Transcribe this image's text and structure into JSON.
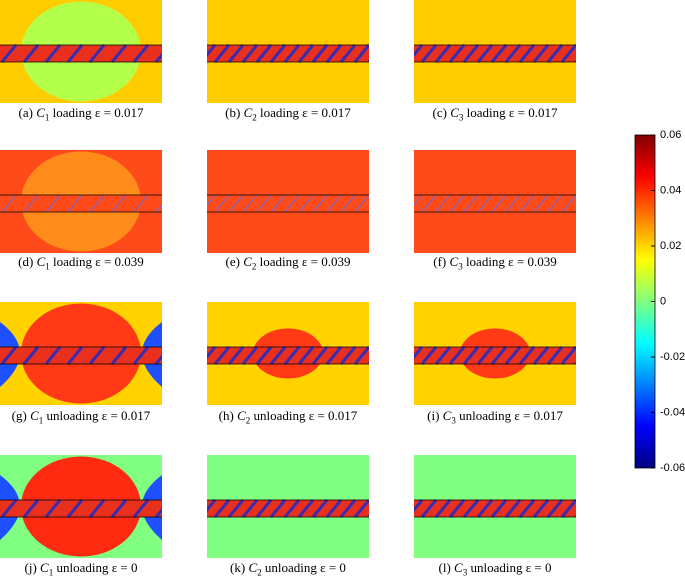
{
  "panels": [
    {
      "tag": "(a)",
      "sym": "C",
      "sub": "1",
      "rest": "loading ε = 0.017"
    },
    {
      "tag": "(b)",
      "sym": "C",
      "sub": "2",
      "rest": "loading ε = 0.017"
    },
    {
      "tag": "(c)",
      "sym": "C",
      "sub": "3",
      "rest": "loading ε = 0.017"
    },
    {
      "tag": "(d)",
      "sym": "C",
      "sub": "1",
      "rest": "loading ε = 0.039"
    },
    {
      "tag": "(e)",
      "sym": "C",
      "sub": "2",
      "rest": "loading ε = 0.039"
    },
    {
      "tag": "(f)",
      "sym": "C",
      "sub": "3",
      "rest": "loading ε = 0.039"
    },
    {
      "tag": "(g)",
      "sym": "C",
      "sub": "1",
      "rest": "unloading ε = 0.017"
    },
    {
      "tag": "(h)",
      "sym": "C",
      "sub": "2",
      "rest": "unloading ε = 0.017"
    },
    {
      "tag": "(i)",
      "sym": "C",
      "sub": "3",
      "rest": "unloading ε = 0.017"
    },
    {
      "tag": "(j)",
      "sym": "C",
      "sub": "1",
      "rest": "unloading ε = 0"
    },
    {
      "tag": "(k)",
      "sym": "C",
      "sub": "2",
      "rest": "unloading ε = 0"
    },
    {
      "tag": "(l)",
      "sym": "C",
      "sub": "3",
      "rest": "unloading ε = 0"
    }
  ],
  "colorbar": {
    "lim": [
      -0.06,
      0.06
    ],
    "ticks": [
      0.06,
      0.04,
      0.02,
      0,
      -0.02,
      -0.04,
      -0.06
    ]
  }
}
